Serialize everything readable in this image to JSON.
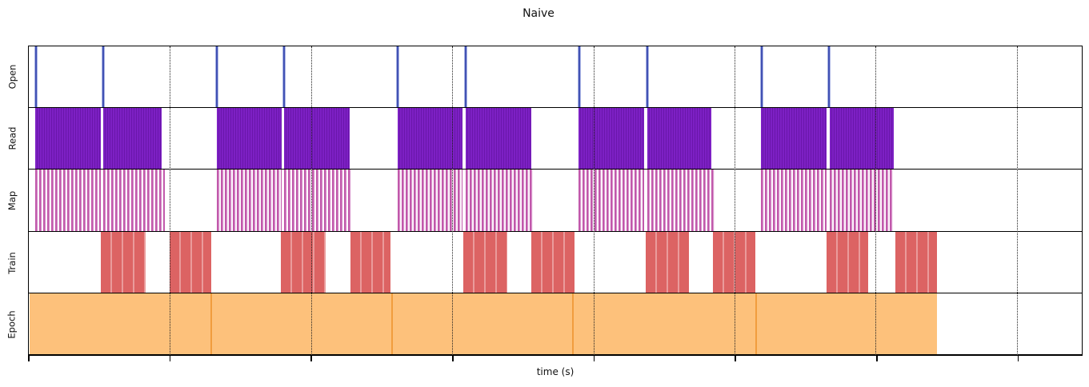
{
  "figure": {
    "title": "Naive",
    "xlabel": "time (s)",
    "background": "#ffffff",
    "spine_color": "#000000",
    "gridline_style": "dotted"
  },
  "chart_data": {
    "type": "timeline",
    "title": "Naive",
    "xlabel": "time (s)",
    "x_axis": {
      "note": "axis ticks are unlabeled; positions given in px offset from left spine",
      "span": 1318,
      "tick_positions": [
        0,
        176.7,
        353.3,
        530,
        706.7,
        883.3,
        1060,
        1236.7
      ],
      "gridline_positions": [
        176.7,
        353.3,
        530,
        706.7,
        883.3,
        1060,
        1236.7
      ]
    },
    "rows": [
      {
        "label": "Open",
        "kind": "spikes",
        "color": "#4252b4",
        "edge_color": "#aab4e4",
        "spike_width": 4,
        "spikes": [
          7.5,
          91,
          233.5,
          317,
          460,
          545,
          687,
          772,
          915.5,
          999.5
        ]
      },
      {
        "label": "Read",
        "kind": "striped",
        "color": "#7d20c4",
        "stripe_color": "#6a16ab",
        "stripe_period": [
          2,
          1
        ],
        "intervals": [
          [
            8,
            90.5
          ],
          [
            93.5,
            166.5
          ],
          [
            235,
            316.5
          ],
          [
            319.5,
            401.5
          ],
          [
            461.5,
            543
          ],
          [
            547,
            628.5
          ],
          [
            688,
            770
          ],
          [
            774,
            854.5
          ],
          [
            916,
            998.5
          ],
          [
            1002.5,
            1083
          ]
        ]
      },
      {
        "label": "Map",
        "kind": "map-striped",
        "color": "#c158ab",
        "light_color": "#f0d4ec",
        "gap_color": "#ffffff",
        "intervals": [
          [
            8,
            90.5
          ],
          [
            93.5,
            170.5
          ],
          [
            235,
            316.5
          ],
          [
            319.5,
            405
          ],
          [
            461.5,
            543
          ],
          [
            547,
            632
          ],
          [
            688,
            770
          ],
          [
            774,
            858
          ],
          [
            916,
            998.5
          ],
          [
            1002.5,
            1083
          ]
        ]
      },
      {
        "label": "Train",
        "kind": "train-striped",
        "color": "#dc6363",
        "stripe_color": "#ea9b9b",
        "intervals": [
          [
            90.5,
            146
          ],
          [
            176.5,
            228
          ],
          [
            315,
            372
          ],
          [
            403,
            452.5
          ],
          [
            543.5,
            598.5
          ],
          [
            628.5,
            683
          ],
          [
            772,
            826
          ],
          [
            856.5,
            909.5
          ],
          [
            998.5,
            1051
          ],
          [
            1085,
            1137
          ]
        ]
      },
      {
        "label": "Epoch",
        "kind": "solid",
        "color": "#fdc17b",
        "separator_color": "#f19d3e",
        "intervals": [
          [
            1,
            228
          ],
          [
            228,
            455
          ],
          [
            455,
            681
          ],
          [
            681,
            910
          ],
          [
            910,
            1137
          ]
        ]
      }
    ]
  }
}
